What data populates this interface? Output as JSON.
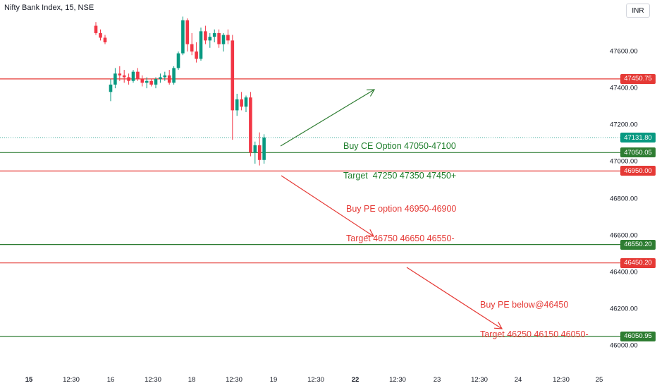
{
  "header": {
    "title": "Nifty Bank Index, 15, NSE",
    "currency_button": "INR"
  },
  "colors": {
    "up": "#089981",
    "down": "#f23645",
    "green_line": "#2e7d32",
    "red_line": "#e53935",
    "price_tag": "#089981"
  },
  "y_axis_ticks": [
    "47600.00",
    "47400.00",
    "47200.00",
    "47000.00",
    "46800.00",
    "46600.00",
    "46400.00",
    "46200.00",
    "46000.00"
  ],
  "x_axis_ticks": [
    {
      "label": "15",
      "bold": true
    },
    {
      "label": "12:30",
      "bold": false
    },
    {
      "label": "16",
      "bold": false
    },
    {
      "label": "12:30",
      "bold": false
    },
    {
      "label": "18",
      "bold": false
    },
    {
      "label": "12:30",
      "bold": false
    },
    {
      "label": "19",
      "bold": false
    },
    {
      "label": "12:30",
      "bold": false
    },
    {
      "label": "22",
      "bold": true
    },
    {
      "label": "12:30",
      "bold": false
    },
    {
      "label": "23",
      "bold": false
    },
    {
      "label": "12:30",
      "bold": false
    },
    {
      "label": "24",
      "bold": false
    },
    {
      "label": "12:30",
      "bold": false
    },
    {
      "label": "25",
      "bold": false
    }
  ],
  "price_tags": [
    {
      "label": "47450.75",
      "kind": "red"
    },
    {
      "label": "47131.80",
      "kind": "current"
    },
    {
      "label": "47050.05",
      "kind": "green"
    },
    {
      "label": "46950.00",
      "kind": "red"
    },
    {
      "label": "46550.20",
      "kind": "green"
    },
    {
      "label": "46450.20",
      "kind": "red"
    },
    {
      "label": "46050.95",
      "kind": "green"
    }
  ],
  "annotations": [
    {
      "line1": "Buy CE Option 47050-47100",
      "line2": "Target  47250 47350 47450+",
      "color": "green"
    },
    {
      "line1": "Buy PE option 46950-46900",
      "line2": "Target 46750 46650 46550-",
      "color": "red"
    },
    {
      "line1": "Buy PE below@46450",
      "line2": "Target 46250 46150 46050-",
      "color": "red"
    }
  ],
  "chart_data": {
    "type": "candlestick",
    "ylim": [
      45970,
      47800
    ],
    "candles": [
      [
        47740,
        47760,
        47690,
        47700
      ],
      [
        47700,
        47720,
        47660,
        47675
      ],
      [
        47675,
        47690,
        47640,
        47650
      ],
      [
        47380,
        47450,
        47330,
        47420
      ],
      [
        47420,
        47510,
        47400,
        47480
      ],
      [
        47480,
        47520,
        47440,
        47470
      ],
      [
        47470,
        47500,
        47430,
        47460
      ],
      [
        47460,
        47480,
        47420,
        47440
      ],
      [
        47440,
        47500,
        47430,
        47490
      ],
      [
        47490,
        47510,
        47440,
        47450
      ],
      [
        47450,
        47470,
        47410,
        47430
      ],
      [
        47430,
        47460,
        47400,
        47440
      ],
      [
        47440,
        47450,
        47410,
        47420
      ],
      [
        47420,
        47460,
        47400,
        47450
      ],
      [
        47450,
        47480,
        47430,
        47460
      ],
      [
        47460,
        47490,
        47440,
        47470
      ],
      [
        47470,
        47500,
        47420,
        47430
      ],
      [
        47430,
        47520,
        47420,
        47510
      ],
      [
        47510,
        47600,
        47500,
        47590
      ],
      [
        47590,
        47790,
        47580,
        47770
      ],
      [
        47770,
        47780,
        47600,
        47640
      ],
      [
        47640,
        47700,
        47580,
        47600
      ],
      [
        47600,
        47650,
        47540,
        47560
      ],
      [
        47560,
        47730,
        47550,
        47710
      ],
      [
        47710,
        47740,
        47640,
        47660
      ],
      [
        47660,
        47700,
        47620,
        47680
      ],
      [
        47680,
        47720,
        47650,
        47700
      ],
      [
        47700,
        47720,
        47620,
        47640
      ],
      [
        47640,
        47700,
        47600,
        47690
      ],
      [
        47690,
        47720,
        47640,
        47660
      ],
      [
        47660,
        47690,
        47120,
        47280
      ],
      [
        47280,
        47370,
        47250,
        47340
      ],
      [
        47340,
        47380,
        47280,
        47300
      ],
      [
        47300,
        47360,
        47270,
        47350
      ],
      [
        47350,
        47380,
        47030,
        47050
      ],
      [
        47050,
        47110,
        46990,
        47090
      ],
      [
        47090,
        47160,
        46980,
        47010
      ],
      [
        47010,
        47150,
        46990,
        47132
      ]
    ],
    "levels": [
      {
        "value": 47450.75,
        "color": "red"
      },
      {
        "value": 47050.05,
        "color": "green"
      },
      {
        "value": 46950.0,
        "color": "red"
      },
      {
        "value": 46550.2,
        "color": "green"
      },
      {
        "value": 46450.2,
        "color": "red"
      },
      {
        "value": 46050.95,
        "color": "green"
      }
    ],
    "last_price": 47131.8
  }
}
